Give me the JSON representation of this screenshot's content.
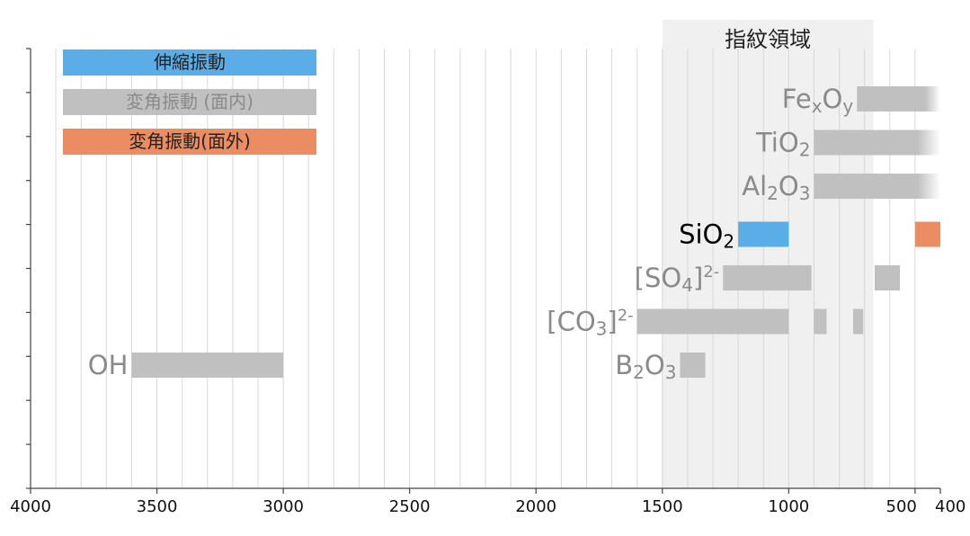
{
  "chart_data": {
    "type": "bar",
    "title": "",
    "xlabel": "",
    "ylabel": "",
    "x_reversed": true,
    "xlim": [
      4000,
      400
    ],
    "x_ticks": [
      {
        "value": 4000,
        "label": "4000"
      },
      {
        "value": 3500,
        "label": "3500"
      },
      {
        "value": 3000,
        "label": "3000"
      },
      {
        "value": 2500,
        "label": "2500"
      },
      {
        "value": 2000,
        "label": "2000"
      },
      {
        "value": 1500,
        "label": "1500"
      },
      {
        "value": 1000,
        "label": "1000"
      },
      {
        "value": 500,
        "label": "500"
      },
      {
        "value": 400,
        "label": "400"
      }
    ],
    "grid_step": 100,
    "grid": true,
    "fingerprint_region": {
      "label": "指紋領域",
      "from": 1500,
      "to": 665
    },
    "legend": [
      {
        "label": "伸縮振動",
        "kind": "stretch",
        "color": "#5aade6",
        "text_color": "#222222"
      },
      {
        "label": "変角振動 (面内)",
        "kind": "bend_in",
        "color": "#c0c0c0",
        "text_color": "#8a8a8a"
      },
      {
        "label": "変角振動(面外)",
        "kind": "bend_out",
        "color": "#ec8c63",
        "text_color": "#222222"
      }
    ],
    "colors": {
      "stretch": "#5aade6",
      "bend_in": "#c0c0c0",
      "bend_out": "#ec8c63"
    },
    "series": [
      {
        "row": 1,
        "label": {
          "base": "Fe",
          "parts": [
            {
              "t": "x",
              "pos": "sub"
            },
            {
              "t": "O",
              "pos": "n"
            },
            {
              "t": "y",
              "pos": "sub"
            }
          ]
        },
        "label_color": "#8a8a8a",
        "bars": [
          {
            "from": 730,
            "to": 400,
            "kind": "bend_in",
            "fade": true
          }
        ]
      },
      {
        "row": 2,
        "label": {
          "base": "TiO",
          "parts": [
            {
              "t": "2",
              "pos": "sub"
            }
          ]
        },
        "label_color": "#8a8a8a",
        "bars": [
          {
            "from": 900,
            "to": 400,
            "kind": "bend_in",
            "fade": true
          }
        ]
      },
      {
        "row": 3,
        "label": {
          "base": "Al",
          "parts": [
            {
              "t": "2",
              "pos": "sub"
            },
            {
              "t": "O",
              "pos": "n"
            },
            {
              "t": "3",
              "pos": "sub"
            }
          ]
        },
        "label_color": "#8a8a8a",
        "bars": [
          {
            "from": 900,
            "to": 400,
            "kind": "bend_in",
            "fade": true
          }
        ]
      },
      {
        "row": 4,
        "label": {
          "base": "SiO",
          "parts": [
            {
              "t": "2",
              "pos": "sub"
            }
          ]
        },
        "label_color": "#000000",
        "bars": [
          {
            "from": 1200,
            "to": 1000,
            "kind": "stretch"
          },
          {
            "from": 500,
            "to": 400,
            "kind": "bend_out"
          }
        ]
      },
      {
        "row": 5,
        "label": {
          "base": "[SO",
          "parts": [
            {
              "t": "4",
              "pos": "sub"
            },
            {
              "t": "]",
              "pos": "n"
            },
            {
              "t": "2-",
              "pos": "sup"
            }
          ]
        },
        "label_color": "#8a8a8a",
        "bars": [
          {
            "from": 1260,
            "to": 910,
            "kind": "bend_in"
          },
          {
            "from": 660,
            "to": 560,
            "kind": "bend_in"
          }
        ]
      },
      {
        "row": 6,
        "label": {
          "base": "[CO",
          "parts": [
            {
              "t": "3",
              "pos": "sub"
            },
            {
              "t": "]",
              "pos": "n"
            },
            {
              "t": "2-",
              "pos": "sup"
            }
          ]
        },
        "label_color": "#8a8a8a",
        "bars": [
          {
            "from": 1600,
            "to": 1000,
            "kind": "bend_in"
          },
          {
            "from": 900,
            "to": 850,
            "kind": "bend_in"
          },
          {
            "from": 745,
            "to": 705,
            "kind": "bend_in"
          }
        ]
      },
      {
        "row": 7,
        "label": {
          "base": "B",
          "parts": [
            {
              "t": "2",
              "pos": "sub"
            },
            {
              "t": "O",
              "pos": "n"
            },
            {
              "t": "3",
              "pos": "sub"
            }
          ]
        },
        "label_color": "#8a8a8a",
        "bars": [
          {
            "from": 1430,
            "to": 1330,
            "kind": "bend_in"
          }
        ]
      },
      {
        "row": 7,
        "label": {
          "base": "OH",
          "parts": []
        },
        "label_color": "#8a8a8a",
        "bars": [
          {
            "from": 3600,
            "to": 3000,
            "kind": "bend_in"
          }
        ]
      }
    ]
  }
}
